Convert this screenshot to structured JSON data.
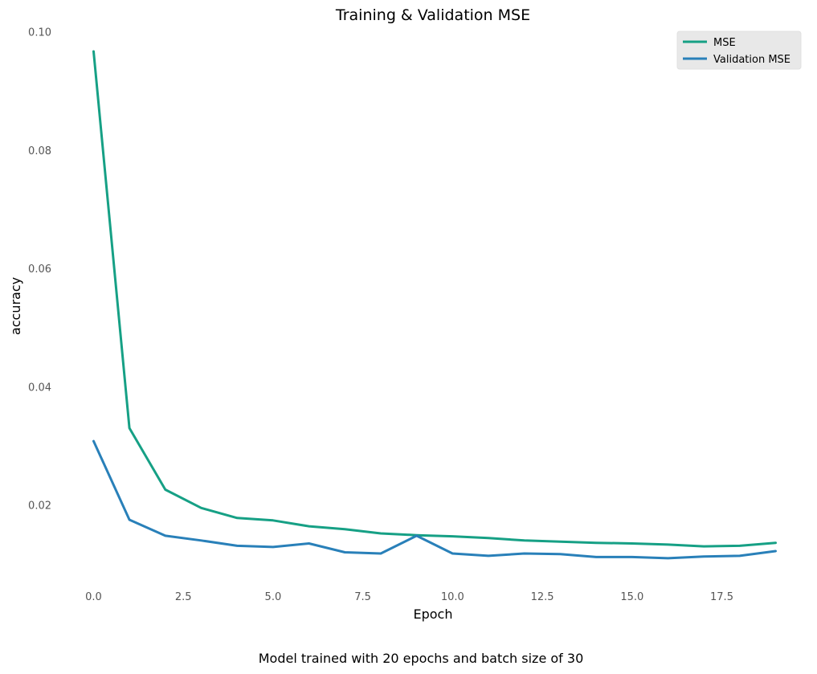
{
  "chart_data": {
    "type": "line",
    "title": "Training & Validation MSE",
    "xlabel": "Epoch",
    "ylabel": "accuracy",
    "caption": "Model trained with 20 epochs and batch size of 30",
    "x": [
      0,
      1,
      2,
      3,
      4,
      5,
      6,
      7,
      8,
      9,
      10,
      11,
      12,
      13,
      14,
      15,
      16,
      17,
      18,
      19
    ],
    "xlim": [
      -0.95,
      19.1
    ],
    "ylim": [
      0.0065,
      0.1005
    ],
    "xticks": [
      0,
      2.5,
      5,
      7.5,
      10,
      12.5,
      15,
      17.5
    ],
    "xtick_labels": [
      "0.0",
      "2.5",
      "5.0",
      "7.5",
      "10.0",
      "12.5",
      "15.0",
      "17.5"
    ],
    "yticks": [
      0.02,
      0.04,
      0.06,
      0.08,
      0.1
    ],
    "ytick_labels": [
      "0.02",
      "0.04",
      "0.06",
      "0.08",
      "0.10"
    ],
    "grid": false,
    "legend_position": "top-right",
    "series": [
      {
        "name": "MSE",
        "color": "#16a085",
        "values": [
          0.0967,
          0.033,
          0.0226,
          0.0195,
          0.0178,
          0.0174,
          0.0164,
          0.0159,
          0.0152,
          0.0149,
          0.0147,
          0.0144,
          0.014,
          0.0138,
          0.0136,
          0.0135,
          0.0133,
          0.013,
          0.0131,
          0.0136
        ]
      },
      {
        "name": "Validation MSE",
        "color": "#2980b9",
        "values": [
          0.0308,
          0.0175,
          0.0148,
          0.014,
          0.0131,
          0.0129,
          0.0135,
          0.012,
          0.0118,
          0.0148,
          0.0118,
          0.0114,
          0.0118,
          0.0117,
          0.0112,
          0.0112,
          0.011,
          0.0113,
          0.0114,
          0.0122
        ]
      }
    ]
  }
}
